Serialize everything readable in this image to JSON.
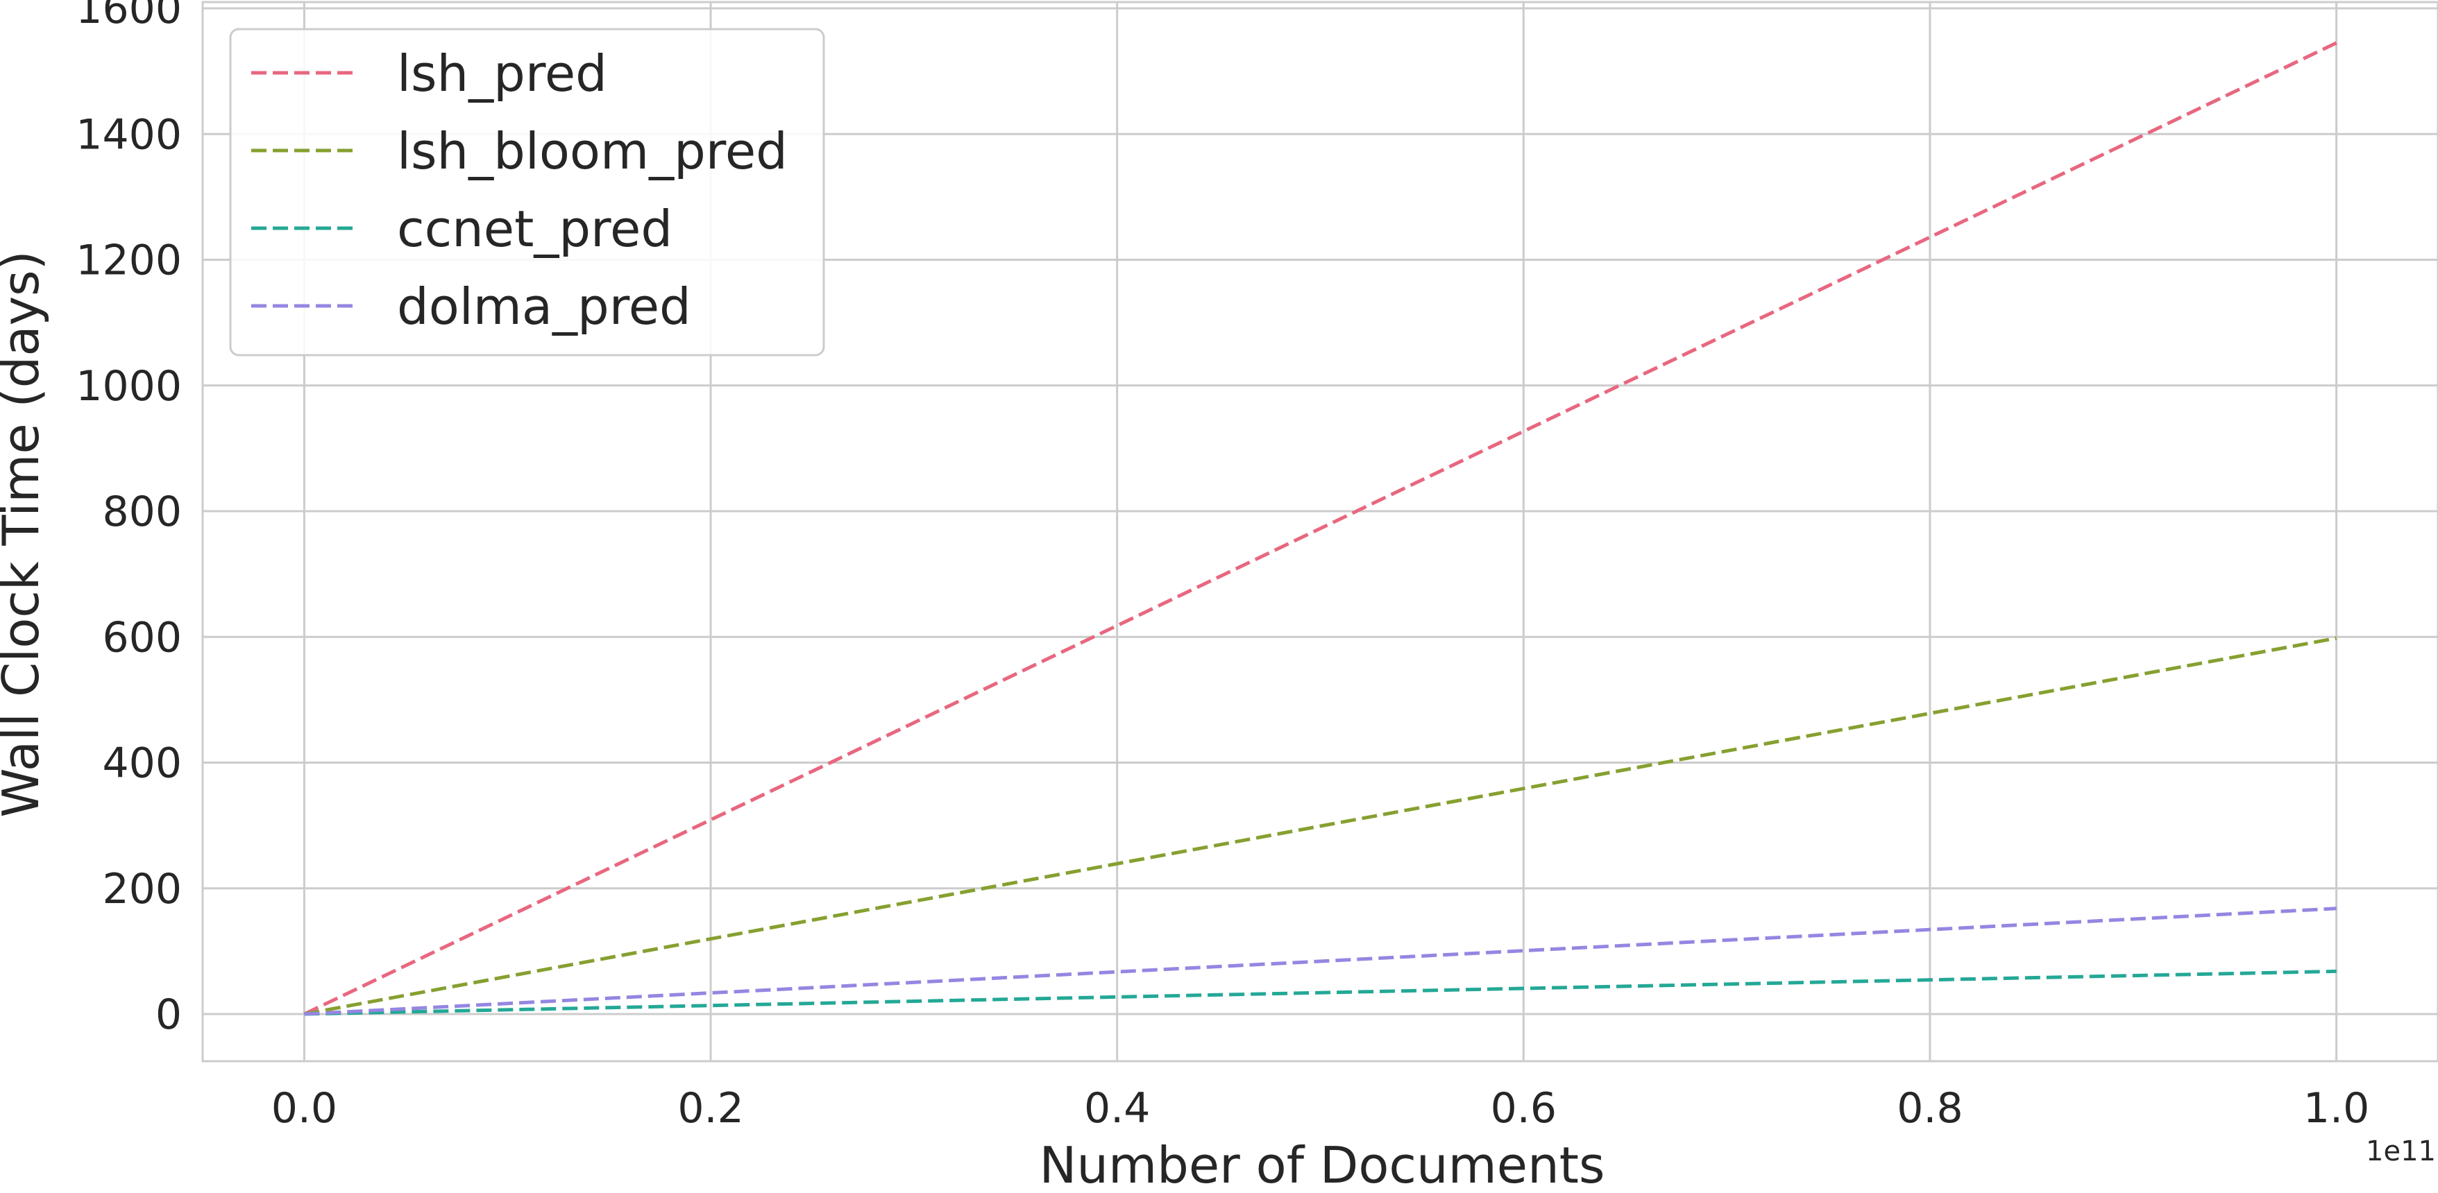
{
  "chart_data": {
    "type": "line",
    "xlabel": "Number of Documents",
    "ylabel": "Wall Clock Time (days)",
    "x_offset_label": "1e11",
    "x": [
      0.0,
      1.0
    ],
    "xlim": [
      -0.05,
      1.05
    ],
    "ylim": [
      -75,
      1610
    ],
    "xticks": [
      0.0,
      0.2,
      0.4,
      0.6,
      0.8,
      1.0
    ],
    "xtick_labels": [
      "0.0",
      "0.2",
      "0.4",
      "0.6",
      "0.8",
      "1.0"
    ],
    "yticks": [
      0,
      200,
      400,
      600,
      800,
      1000,
      1200,
      1400,
      1600
    ],
    "ytick_labels": [
      "0",
      "200",
      "400",
      "600",
      "800",
      "1000",
      "1200",
      "1400",
      "1600"
    ],
    "grid": true,
    "legend_position": "top-left",
    "series": [
      {
        "name": "lsh_pred",
        "color": "#e8677f",
        "style": "dashed",
        "values": [
          0,
          1545
        ]
      },
      {
        "name": "lsh_bloom_pred",
        "color": "#86a030",
        "style": "dashed",
        "values": [
          0,
          598
        ]
      },
      {
        "name": "ccnet_pred",
        "color": "#24a896",
        "style": "dashed",
        "values": [
          0,
          68
        ]
      },
      {
        "name": "dolma_pred",
        "color": "#9586e2",
        "style": "dashed",
        "values": [
          0,
          168
        ]
      }
    ]
  }
}
